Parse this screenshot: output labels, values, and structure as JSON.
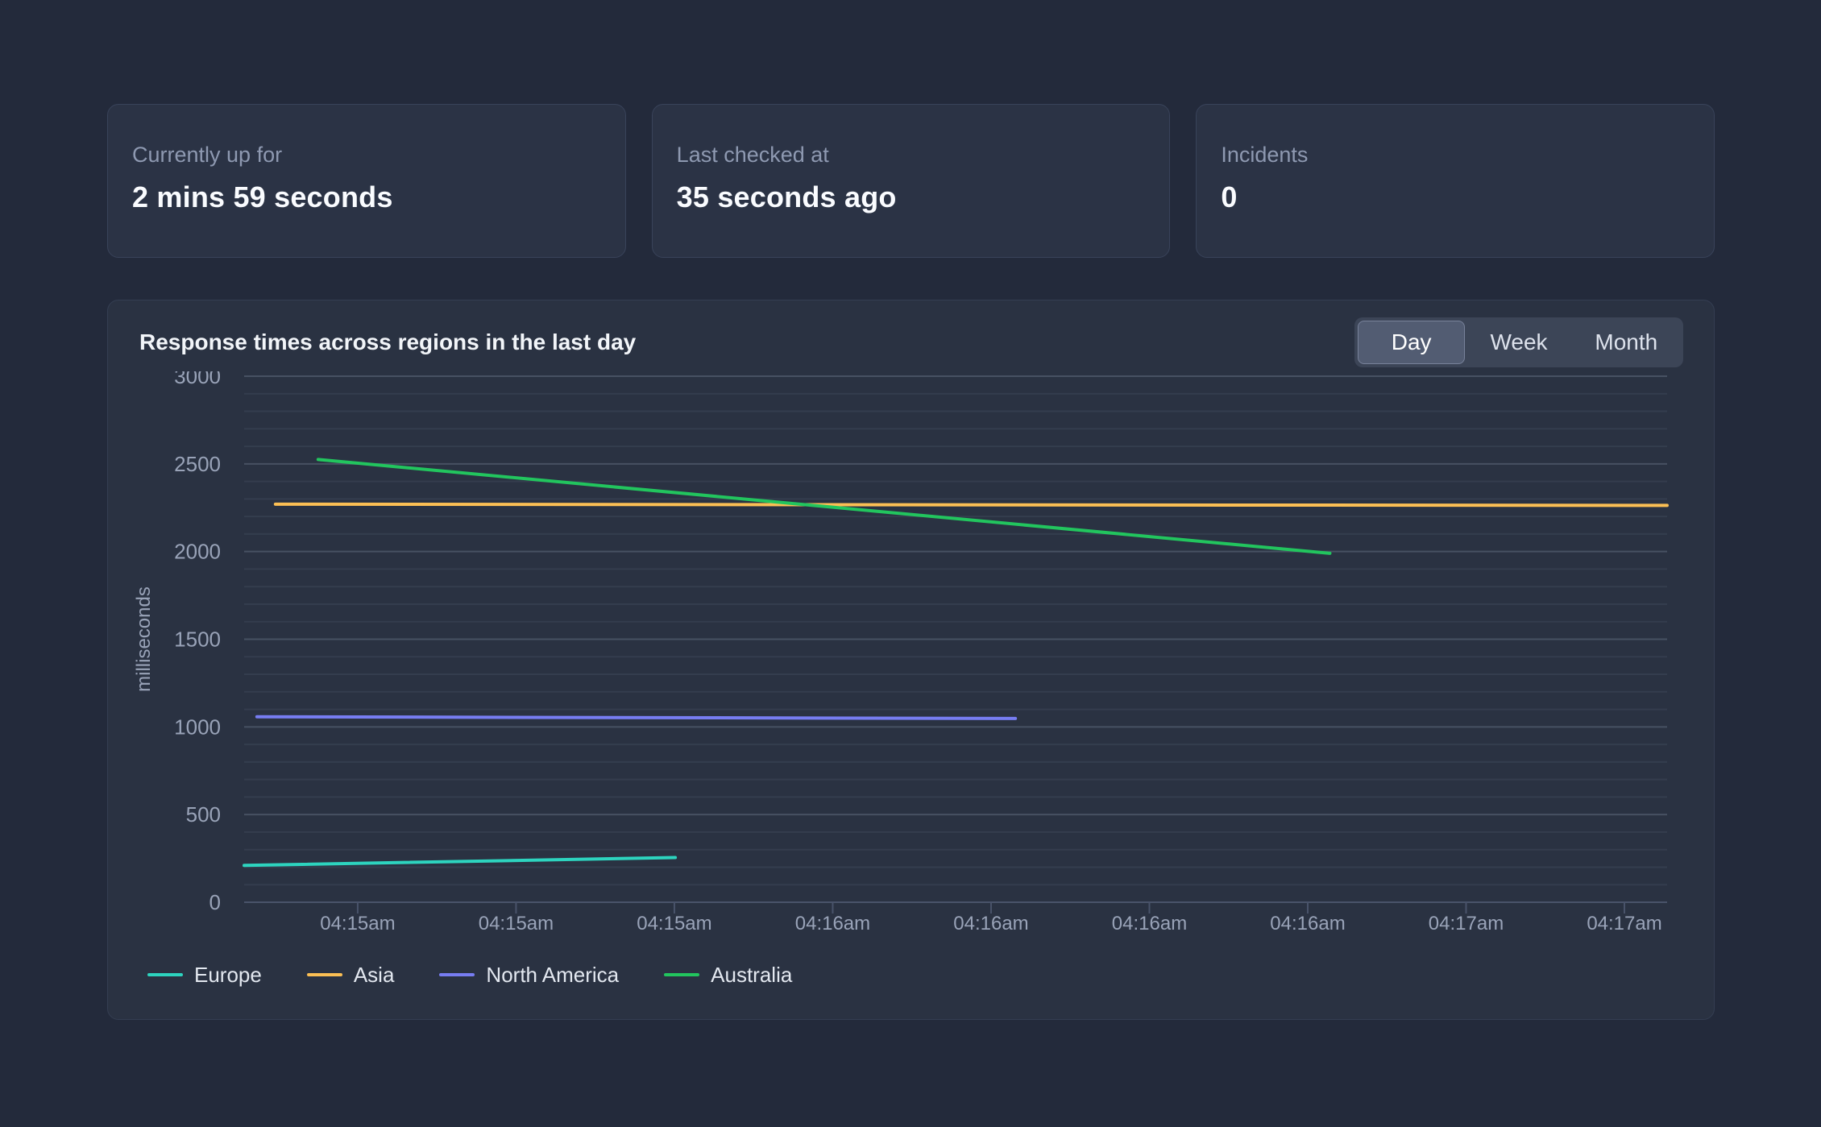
{
  "stats": [
    {
      "label": "Currently up for",
      "value": "2 mins 59 seconds"
    },
    {
      "label": "Last checked at",
      "value": "35 seconds ago"
    },
    {
      "label": "Incidents",
      "value": "0"
    }
  ],
  "chart_panel": {
    "title": "Response times across regions in the last day",
    "range_toggle": {
      "options": [
        "Day",
        "Week",
        "Month"
      ],
      "selected": "Day"
    }
  },
  "chart_data": {
    "type": "line",
    "title": "Response times across regions in the last day",
    "xlabel": "",
    "ylabel": "milliseconds",
    "ylim": [
      0,
      3000
    ],
    "y_ticks": [
      0,
      500,
      1000,
      1500,
      2000,
      2500,
      3000
    ],
    "minor_grid_step": 100,
    "major_grid_step": 500,
    "grid": true,
    "legend_position": "bottom",
    "x_tick_labels": [
      "04:15am",
      "04:15am",
      "04:15am",
      "04:16am",
      "04:16am",
      "04:16am",
      "04:16am",
      "04:17am",
      "04:17am"
    ],
    "series": [
      {
        "name": "Europe",
        "color": "#2dd4bf",
        "points": [
          {
            "x_frac": 0.0,
            "ms": 210
          },
          {
            "x_frac": 0.303,
            "ms": 255
          }
        ]
      },
      {
        "name": "Asia",
        "color": "#fbbf54",
        "points": [
          {
            "x_frac": 0.022,
            "ms": 2270
          },
          {
            "x_frac": 1.0,
            "ms": 2263
          }
        ]
      },
      {
        "name": "North America",
        "color": "#777df2",
        "points": [
          {
            "x_frac": 0.009,
            "ms": 1058
          },
          {
            "x_frac": 0.542,
            "ms": 1048
          }
        ]
      },
      {
        "name": "Australia",
        "color": "#22c55e",
        "points": [
          {
            "x_frac": 0.052,
            "ms": 2525
          },
          {
            "x_frac": 0.763,
            "ms": 1990
          }
        ]
      }
    ],
    "colors": {
      "axis_line": "#49536a",
      "grid_major": "rgba(148,163,184,0.28)",
      "grid_minor": "rgba(148,163,184,0.10)",
      "tick_label": "#99a3b8",
      "legend_text": "#e3e8f0"
    }
  }
}
